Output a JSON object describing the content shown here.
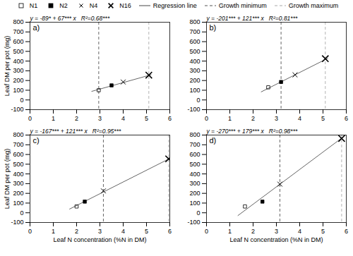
{
  "chart_data": [
    {
      "type": "scatter",
      "title": "a)",
      "annotations": [
        "y = -89* + 67*** x   R²=0.68***"
      ],
      "ylabel": "Leaf DM per pot (mg)",
      "xlim": [
        0,
        6
      ],
      "ylim": [
        -100,
        800
      ],
      "xticks": [
        0,
        1,
        2,
        3,
        4,
        5,
        6
      ],
      "yticks": [
        -100,
        0,
        100,
        200,
        300,
        400,
        500,
        600,
        700,
        800
      ],
      "grid": false,
      "legend": "top",
      "series": [
        {
          "name": "N1",
          "type": "scatter",
          "marker": "square_open",
          "color": "black",
          "x": [
            2.95
          ],
          "values": [
            100
          ]
        },
        {
          "name": "N2",
          "type": "scatter",
          "marker": "square",
          "color": "black",
          "x": [
            3.5
          ],
          "values": [
            150
          ]
        },
        {
          "name": "N4",
          "type": "scatter",
          "marker": "x",
          "color": "black",
          "x": [
            4.0
          ],
          "values": [
            185
          ]
        },
        {
          "name": "N16",
          "type": "scatter",
          "marker": "x_thick",
          "color": "black",
          "x": [
            5.1
          ],
          "values": [
            255
          ]
        },
        {
          "name": "Regression line",
          "type": "line",
          "color": "#666666",
          "x": [
            2.65,
            5.2
          ],
          "values": [
            88.55,
            259.4
          ]
        },
        {
          "name": "Growth minimum",
          "type": "vline",
          "color": "#555555",
          "line_style": "dashed",
          "x": [
            2.95
          ]
        },
        {
          "name": "Growth maximum",
          "type": "vline",
          "color": "#aaaaaa",
          "line_style": "dashed",
          "x": [
            5.1
          ]
        }
      ]
    },
    {
      "type": "scatter",
      "title": "b)",
      "annotations": [
        "y = -201*** + 121*** x   R²=0.81***"
      ],
      "xlim": [
        0,
        6
      ],
      "ylim": [
        -100,
        800
      ],
      "xticks": [
        0,
        1,
        2,
        3,
        4,
        5,
        6
      ],
      "yticks": [
        -100,
        0,
        100,
        200,
        300,
        400,
        500,
        600,
        700,
        800
      ],
      "grid": false,
      "series": [
        {
          "name": "N1",
          "type": "scatter",
          "marker": "square_open",
          "color": "black",
          "x": [
            2.65
          ],
          "values": [
            130
          ]
        },
        {
          "name": "N2",
          "type": "scatter",
          "marker": "square",
          "color": "black",
          "x": [
            3.2
          ],
          "values": [
            185
          ]
        },
        {
          "name": "N4",
          "type": "scatter",
          "marker": "x",
          "color": "black",
          "x": [
            3.8
          ],
          "values": [
            258
          ]
        },
        {
          "name": "N16",
          "type": "scatter",
          "marker": "x_thick",
          "color": "black",
          "x": [
            5.1
          ],
          "values": [
            425
          ]
        },
        {
          "name": "Regression line",
          "type": "line",
          "color": "#666666",
          "x": [
            2.35,
            5.2
          ],
          "values": [
            83.35,
            428.2
          ]
        },
        {
          "name": "Growth minimum",
          "type": "vline",
          "color": "#555555",
          "line_style": "dashed",
          "x": [
            3.2
          ]
        },
        {
          "name": "Growth maximum",
          "type": "vline",
          "color": "#aaaaaa",
          "line_style": "dashed",
          "x": [
            5.1
          ]
        }
      ]
    },
    {
      "type": "scatter",
      "title": "c)",
      "annotations": [
        "y = -167*** + 121*** x   R²=0.95***"
      ],
      "xlabel": "Leaf N concentration (%N in DM)",
      "ylabel": "Leaf DM per pot (mg)",
      "xlim": [
        0,
        6
      ],
      "ylim": [
        -100,
        800
      ],
      "xticks": [
        0,
        1,
        2,
        3,
        4,
        5,
        6
      ],
      "yticks": [
        -100,
        0,
        100,
        200,
        300,
        400,
        500,
        600,
        700,
        800
      ],
      "grid": false,
      "series": [
        {
          "name": "N1",
          "type": "scatter",
          "marker": "square_open",
          "color": "black",
          "x": [
            2.0
          ],
          "values": [
            65
          ]
        },
        {
          "name": "N2",
          "type": "scatter",
          "marker": "square",
          "color": "black",
          "x": [
            2.35
          ],
          "values": [
            115
          ]
        },
        {
          "name": "N4",
          "type": "scatter",
          "marker": "x",
          "color": "black",
          "x": [
            3.15
          ],
          "values": [
            225
          ]
        },
        {
          "name": "N16",
          "type": "scatter",
          "marker": "x_thick",
          "color": "black",
          "x": [
            5.95
          ],
          "values": [
            555
          ]
        },
        {
          "name": "Regression line",
          "type": "line",
          "color": "#666666",
          "x": [
            1.7,
            6
          ],
          "values": [
            38.7,
            559
          ]
        },
        {
          "name": "Growth minimum",
          "type": "vline",
          "color": "#555555",
          "line_style": "dashed",
          "x": [
            3.15
          ]
        },
        {
          "name": "Growth maximum",
          "type": "vline",
          "color": "#aaaaaa",
          "line_style": "dashed",
          "x": [
            5.95
          ]
        }
      ]
    },
    {
      "type": "scatter",
      "title": "d)",
      "annotations": [
        "y = -270*** + 179*** x   R²=0.98***"
      ],
      "xlabel": "Leaf N concentration (%N in DM)",
      "xlim": [
        0,
        6
      ],
      "ylim": [
        -100,
        800
      ],
      "xticks": [
        0,
        1,
        2,
        3,
        4,
        5,
        6
      ],
      "yticks": [
        -100,
        0,
        100,
        200,
        300,
        400,
        500,
        600,
        700,
        800
      ],
      "grid": false,
      "series": [
        {
          "name": "N1",
          "type": "scatter",
          "marker": "square_open",
          "color": "black",
          "x": [
            1.65
          ],
          "values": [
            65
          ]
        },
        {
          "name": "N2",
          "type": "scatter",
          "marker": "square",
          "color": "black",
          "x": [
            2.4
          ],
          "values": [
            115
          ]
        },
        {
          "name": "N4",
          "type": "scatter",
          "marker": "x",
          "color": "black",
          "x": [
            3.15
          ],
          "values": [
            295
          ]
        },
        {
          "name": "N16",
          "type": "scatter",
          "marker": "x_thick",
          "color": "black",
          "x": [
            5.8
          ],
          "values": [
            765
          ]
        },
        {
          "name": "Regression line",
          "type": "line",
          "color": "#666666",
          "x": [
            1.35,
            5.9
          ],
          "values": [
            -28.35,
            786.1
          ]
        },
        {
          "name": "Growth minimum",
          "type": "vline",
          "color": "#555555",
          "line_style": "dashed",
          "x": [
            3.15
          ]
        },
        {
          "name": "Growth maximum",
          "type": "vline",
          "color": "#aaaaaa",
          "line_style": "dashed",
          "x": [
            5.8
          ]
        }
      ]
    }
  ]
}
